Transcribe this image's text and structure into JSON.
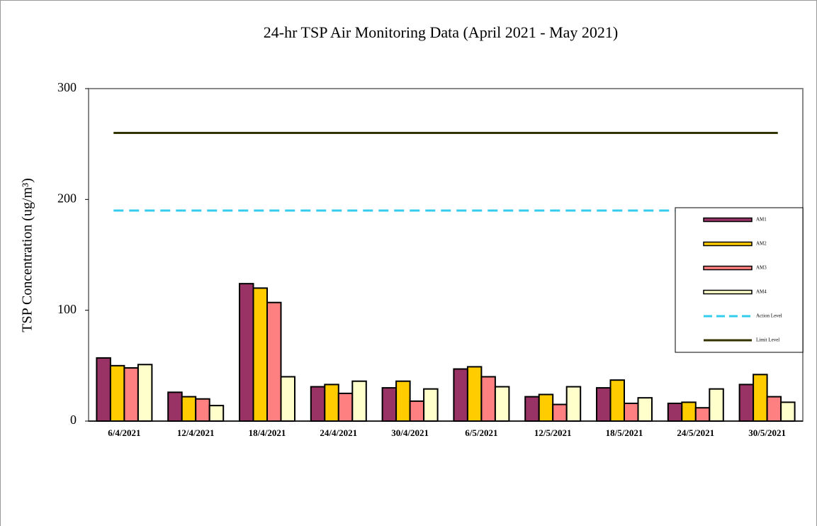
{
  "chart_data": {
    "type": "bar",
    "title": "24-hr TSP Air Monitoring Data (April 2021 - May 2021)",
    "y_label": "TSP Concentration (ug/m³)",
    "categories": [
      "6/4/2021",
      "12/4/2021",
      "18/4/2021",
      "24/4/2021",
      "30/4/2021",
      "6/5/2021",
      "12/5/2021",
      "18/5/2021",
      "24/5/2021",
      "30/5/2021"
    ],
    "series": [
      {
        "name": "AM1",
        "color": "#993366",
        "values": [
          57,
          26,
          124,
          31,
          30,
          47,
          22,
          30,
          16,
          33
        ]
      },
      {
        "name": "AM2",
        "color": "#ffcc00",
        "values": [
          50,
          22,
          120,
          33,
          36,
          49,
          24,
          37,
          17,
          42
        ]
      },
      {
        "name": "AM3",
        "color": "#ff8080",
        "values": [
          48,
          20,
          107,
          25,
          18,
          40,
          15,
          16,
          12,
          22
        ]
      },
      {
        "name": "AM4",
        "color": "#ffffcc",
        "values": [
          51,
          14,
          40,
          36,
          29,
          31,
          31,
          21,
          29,
          17
        ]
      }
    ],
    "reference_lines": [
      {
        "name": "Action Level",
        "value": 190,
        "color": "#33ccee",
        "dashed": true
      },
      {
        "name": "Limit Level",
        "value": 260,
        "color": "#333300",
        "dashed": false
      }
    ],
    "ylim": [
      0,
      300
    ],
    "yticks": [
      0,
      100,
      200,
      300
    ],
    "legend": "right"
  }
}
